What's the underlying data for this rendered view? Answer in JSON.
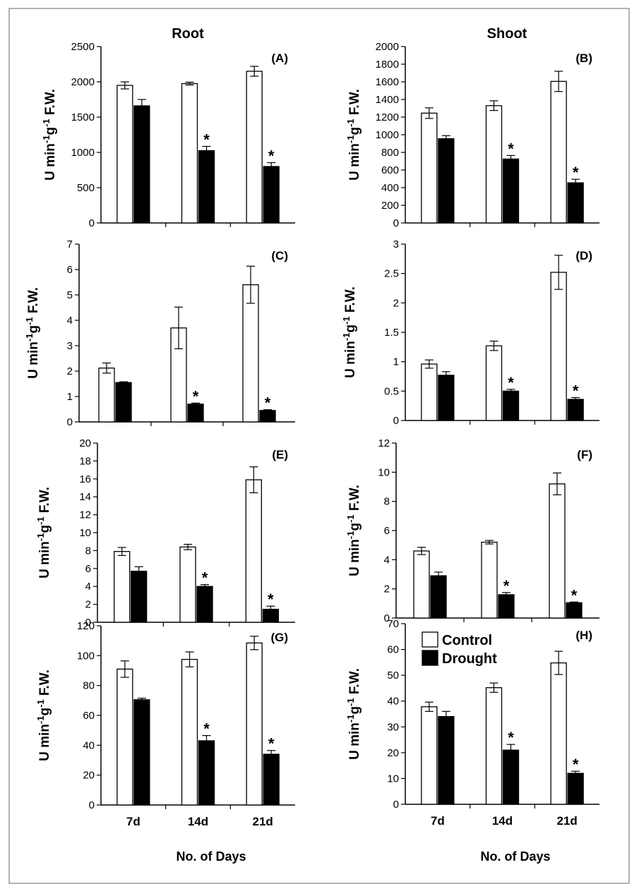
{
  "figure": {
    "titles": {
      "root": "Root",
      "shoot": "Shoot"
    },
    "xlabel": "No. of Days",
    "ylabel_main": "U min",
    "ylabel_sup1": "-1",
    "ylabel_g": "g",
    "ylabel_sup2": "-1",
    "ylabel_tail": " F.W.",
    "significance_marker": "*",
    "legend": {
      "control": "Control",
      "drought": "Drought"
    },
    "colors": {
      "control": "#ffffff",
      "drought": "#000000",
      "outline": "#000000"
    }
  },
  "chart_data": [
    {
      "type": "bar",
      "panel": "(A)",
      "title": "Root",
      "categories": [
        "7d",
        "14d",
        "21d"
      ],
      "ylim": [
        0,
        2500
      ],
      "yticks": [
        0,
        500,
        1000,
        1500,
        2000,
        2500
      ],
      "series": [
        {
          "name": "Control",
          "values": [
            1950,
            1975,
            2150
          ],
          "errors": [
            50,
            20,
            70
          ]
        },
        {
          "name": "Drought",
          "values": [
            1660,
            1025,
            800
          ],
          "errors": [
            90,
            60,
            55
          ]
        }
      ],
      "significant": [
        false,
        true,
        true
      ]
    },
    {
      "type": "bar",
      "panel": "(B)",
      "title": "Shoot",
      "categories": [
        "7d",
        "14d",
        "21d"
      ],
      "ylim": [
        0,
        2000
      ],
      "yticks": [
        0,
        200,
        400,
        600,
        800,
        1000,
        1200,
        1400,
        1600,
        1800,
        2000
      ],
      "series": [
        {
          "name": "Control",
          "values": [
            1245,
            1330,
            1605
          ],
          "errors": [
            60,
            55,
            115
          ]
        },
        {
          "name": "Drought",
          "values": [
            955,
            725,
            455
          ],
          "errors": [
            35,
            40,
            40
          ]
        }
      ],
      "significant": [
        false,
        true,
        true
      ]
    },
    {
      "type": "bar",
      "panel": "(C)",
      "categories": [
        "7d",
        "14d",
        "21d"
      ],
      "ylim": [
        0,
        7
      ],
      "yticks": [
        0,
        1,
        2,
        3,
        4,
        5,
        6,
        7
      ],
      "series": [
        {
          "name": "Control",
          "values": [
            2.12,
            3.7,
            5.4
          ],
          "errors": [
            0.2,
            0.82,
            0.73
          ]
        },
        {
          "name": "Drought",
          "values": [
            1.55,
            0.7,
            0.45
          ],
          "errors": [
            0.03,
            0.04,
            0.03
          ]
        }
      ],
      "significant": [
        false,
        true,
        true
      ]
    },
    {
      "type": "bar",
      "panel": "(D)",
      "categories": [
        "7d",
        "14d",
        "21d"
      ],
      "ylim": [
        0,
        3
      ],
      "yticks": [
        0,
        0.5,
        1,
        1.5,
        2,
        2.5,
        3
      ],
      "series": [
        {
          "name": "Control",
          "values": [
            0.96,
            1.27,
            2.52
          ],
          "errors": [
            0.07,
            0.08,
            0.29
          ]
        },
        {
          "name": "Drought",
          "values": [
            0.77,
            0.5,
            0.36
          ],
          "errors": [
            0.06,
            0.03,
            0.03
          ]
        }
      ],
      "significant": [
        false,
        true,
        true
      ]
    },
    {
      "type": "bar",
      "panel": "(E)",
      "categories": [
        "7d",
        "14d",
        "21d"
      ],
      "ylim": [
        0,
        20
      ],
      "yticks": [
        0,
        2,
        4,
        6,
        8,
        10,
        12,
        14,
        16,
        18,
        20
      ],
      "series": [
        {
          "name": "Control",
          "values": [
            7.9,
            8.4,
            15.9
          ],
          "errors": [
            0.45,
            0.3,
            1.45
          ]
        },
        {
          "name": "Drought",
          "values": [
            5.7,
            4.0,
            1.45
          ],
          "errors": [
            0.5,
            0.2,
            0.35
          ]
        }
      ],
      "significant": [
        false,
        true,
        true
      ]
    },
    {
      "type": "bar",
      "panel": "(F)",
      "categories": [
        "7d",
        "14d",
        "21d"
      ],
      "ylim": [
        0,
        12
      ],
      "yticks": [
        0,
        2,
        4,
        6,
        8,
        10,
        12
      ],
      "series": [
        {
          "name": "Control",
          "values": [
            4.6,
            5.2,
            9.2
          ],
          "errors": [
            0.25,
            0.12,
            0.75
          ]
        },
        {
          "name": "Drought",
          "values": [
            2.9,
            1.6,
            1.05
          ],
          "errors": [
            0.25,
            0.15,
            0.05
          ]
        }
      ],
      "significant": [
        false,
        true,
        true
      ]
    },
    {
      "type": "bar",
      "panel": "(G)",
      "categories": [
        "7d",
        "14d",
        "21d"
      ],
      "ylim": [
        0,
        120
      ],
      "yticks": [
        0,
        20,
        40,
        60,
        80,
        100,
        120
      ],
      "series": [
        {
          "name": "Control",
          "values": [
            91,
            97.5,
            108.5
          ],
          "errors": [
            5.5,
            5,
            4.5
          ]
        },
        {
          "name": "Drought",
          "values": [
            70.5,
            43,
            34
          ],
          "errors": [
            1,
            3.5,
            2.5
          ]
        }
      ],
      "significant": [
        false,
        true,
        true
      ]
    },
    {
      "type": "bar",
      "panel": "(H)",
      "categories": [
        "7d",
        "14d",
        "21d"
      ],
      "ylim": [
        0,
        70
      ],
      "yticks": [
        0,
        10,
        20,
        30,
        40,
        50,
        60,
        70
      ],
      "legend": "top-left",
      "series": [
        {
          "name": "Control",
          "values": [
            37.8,
            45.2,
            54.8
          ],
          "errors": [
            1.8,
            1.8,
            4.5
          ]
        },
        {
          "name": "Drought",
          "values": [
            34,
            21,
            12
          ],
          "errors": [
            2,
            2.2,
            0.8
          ]
        }
      ],
      "significant": [
        false,
        true,
        true
      ]
    }
  ]
}
